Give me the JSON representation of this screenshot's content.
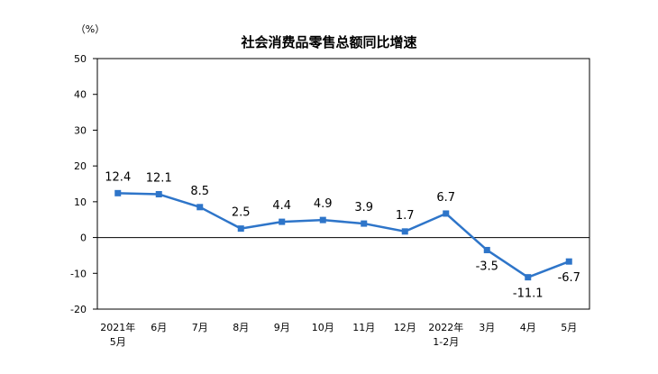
{
  "chart_data": {
    "type": "line",
    "title": "社会消费品零售总额同比增速",
    "unit_label": "（%）",
    "categories": [
      {
        "line1": "2021年",
        "line2": "5月"
      },
      {
        "line1": "6月",
        "line2": ""
      },
      {
        "line1": "7月",
        "line2": ""
      },
      {
        "line1": "8月",
        "line2": ""
      },
      {
        "line1": "9月",
        "line2": ""
      },
      {
        "line1": "10月",
        "line2": ""
      },
      {
        "line1": "11月",
        "line2": ""
      },
      {
        "line1": "12月",
        "line2": ""
      },
      {
        "line1": "2022年",
        "line2": "1-2月"
      },
      {
        "line1": "3月",
        "line2": ""
      },
      {
        "line1": "4月",
        "line2": ""
      },
      {
        "line1": "5月",
        "line2": ""
      }
    ],
    "values": [
      12.4,
      12.1,
      8.5,
      2.5,
      4.4,
      4.9,
      3.9,
      1.7,
      6.7,
      -3.5,
      -11.1,
      -6.7
    ],
    "data_labels": [
      "12.4",
      "12.1",
      "8.5",
      "2.5",
      "4.4",
      "4.9",
      "3.9",
      "1.7",
      "6.7",
      "-3.5",
      "-11.1",
      "-6.7"
    ],
    "yticks": [
      -20,
      -10,
      0,
      10,
      20,
      30,
      40,
      50
    ],
    "ylim": [
      -20,
      50
    ],
    "grid": false,
    "color": "#2e75c9"
  }
}
